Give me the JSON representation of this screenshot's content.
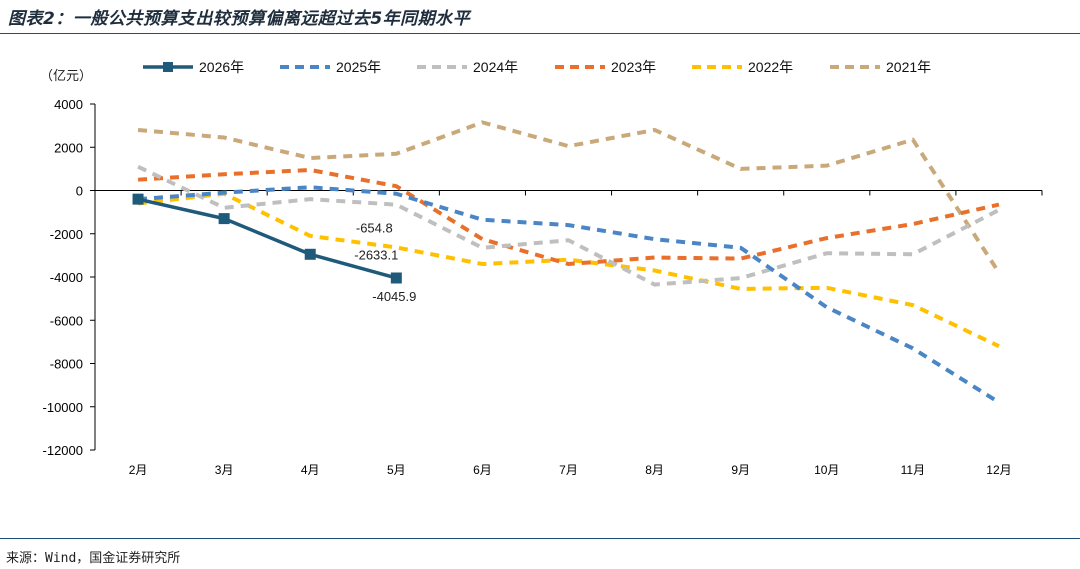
{
  "header": {
    "title": "图表2：一般公共预算支出较预算偏离远超过去5年同期水平"
  },
  "footer": {
    "source": "来源：Wind，国金证券研究所"
  },
  "chart_data": {
    "type": "line",
    "title": "",
    "unit_label": "（亿元）",
    "xlabel": "",
    "ylabel": "",
    "categories": [
      "2月",
      "3月",
      "4月",
      "5月",
      "6月",
      "7月",
      "8月",
      "9月",
      "10月",
      "11月",
      "12月"
    ],
    "ylim": [
      -12000,
      4000
    ],
    "yticks": [
      4000,
      2000,
      0,
      -2000,
      -4000,
      -6000,
      -8000,
      -10000,
      -12000
    ],
    "legend_position": "top",
    "grid": false,
    "series": [
      {
        "name": "2026年",
        "color": "#1f5a7a",
        "dash": "solid",
        "marker": "square",
        "values": [
          -400,
          -1300,
          -2950,
          -4045.9,
          null,
          null,
          null,
          null,
          null,
          null,
          null
        ]
      },
      {
        "name": "2025年",
        "color": "#4a86c5",
        "dash": "dash",
        "values": [
          -400,
          -100,
          150,
          -150,
          -1350,
          -1600,
          -2250,
          -2650,
          -5400,
          -7300,
          -9800
        ]
      },
      {
        "name": "2024年",
        "color": "#bfbfbf",
        "dash": "dash",
        "values": [
          1100,
          -800,
          -400,
          -654.8,
          -2650,
          -2300,
          -4350,
          -4050,
          -2900,
          -2950,
          -900
        ]
      },
      {
        "name": "2023年",
        "color": "#e8702a",
        "dash": "dash",
        "values": [
          500,
          750,
          950,
          200,
          -2250,
          -3400,
          -3100,
          -3150,
          -2200,
          -1550,
          -650
        ]
      },
      {
        "name": "2022年",
        "color": "#ffc000",
        "dash": "dash",
        "values": [
          -600,
          -150,
          -2100,
          -2633.1,
          -3400,
          -3200,
          -3700,
          -4550,
          -4500,
          -5300,
          -7200
        ]
      },
      {
        "name": "2021年",
        "color": "#c9a97a",
        "dash": "dash",
        "values": [
          2800,
          2450,
          1500,
          1700,
          3150,
          2050,
          2800,
          1000,
          1150,
          2350,
          -3800
        ]
      }
    ],
    "data_labels": [
      {
        "series": "2024年",
        "category": "5月",
        "text": "-654.8"
      },
      {
        "series": "2022年",
        "category": "5月",
        "text": "-2633.1"
      },
      {
        "series": "2026年",
        "category": "5月",
        "text": "-4045.9"
      }
    ]
  }
}
